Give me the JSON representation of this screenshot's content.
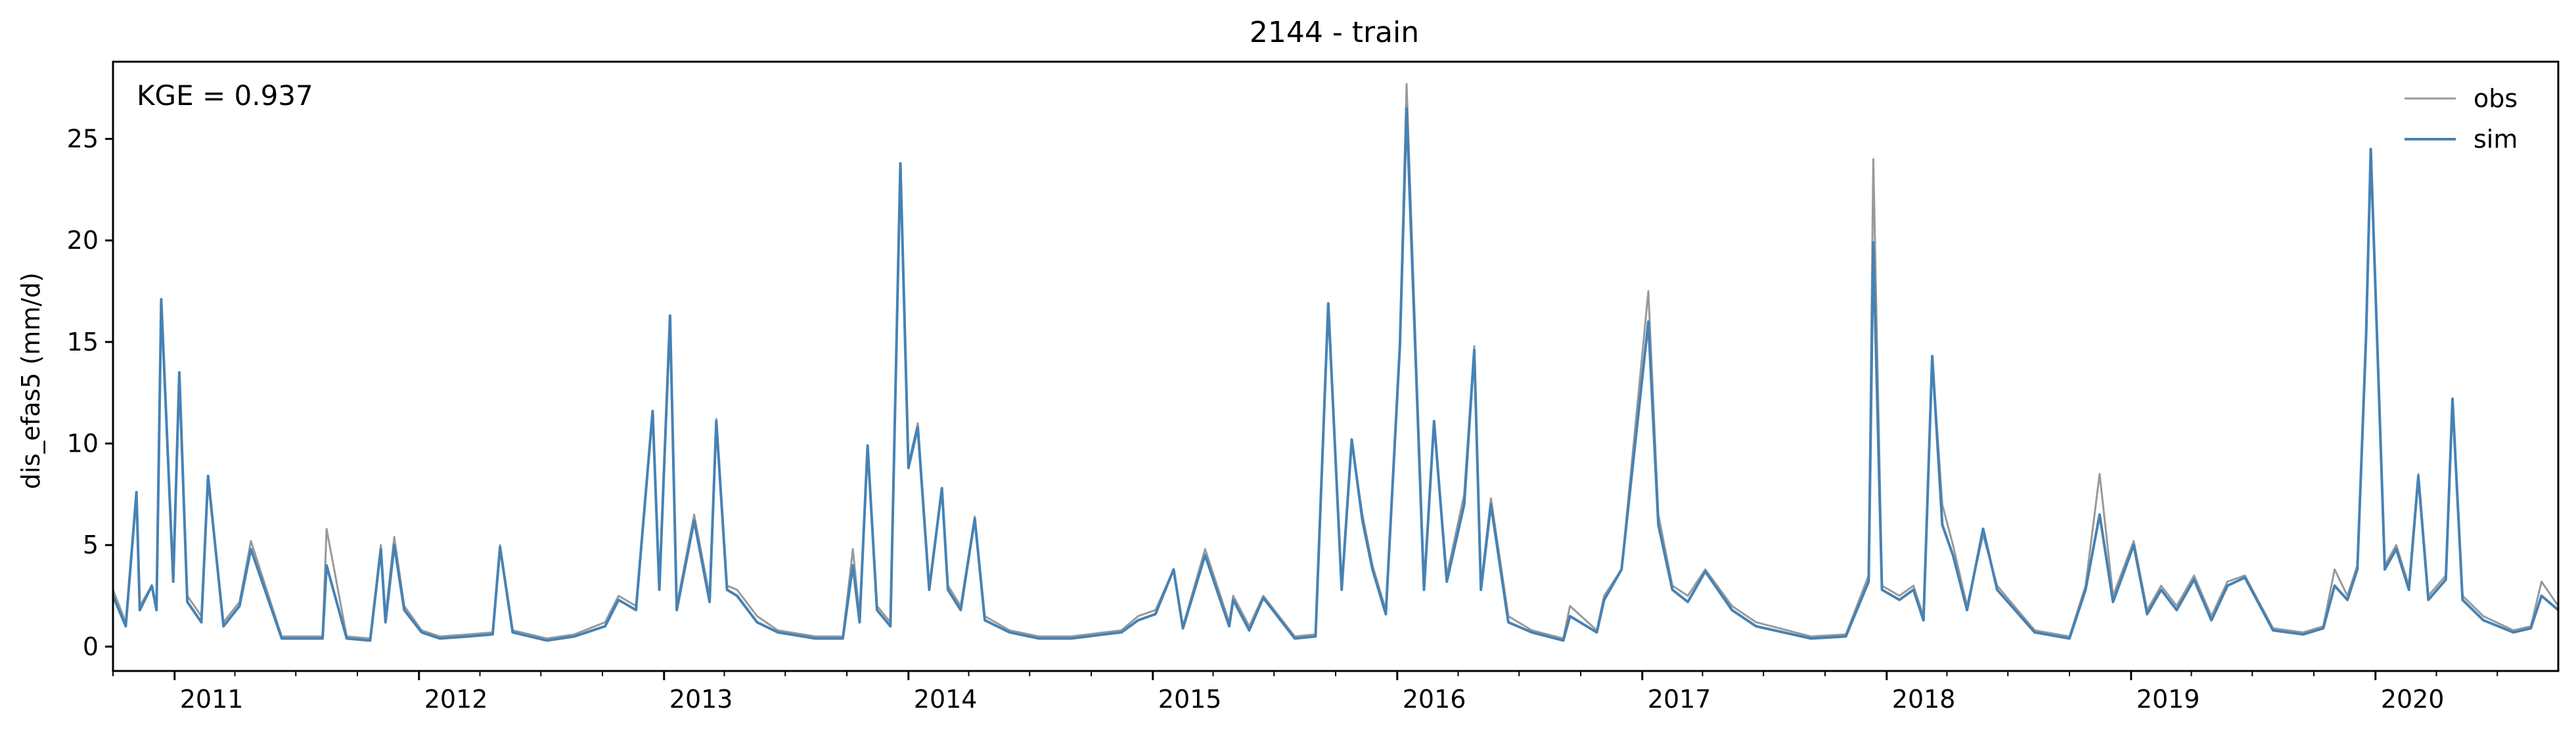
{
  "chart_data": {
    "type": "line",
    "title": "2144 - train",
    "ylabel": "dis_efas5 (mm/d)",
    "xlabel": "",
    "xlim": [
      "2010-10-01",
      "2020-09-30"
    ],
    "ylim": [
      -1.2,
      28.8
    ],
    "yticks": [
      0,
      5,
      10,
      15,
      20,
      25
    ],
    "xticks": [
      "2011",
      "2012",
      "2013",
      "2014",
      "2015",
      "2016",
      "2017",
      "2018",
      "2019",
      "2020"
    ],
    "grid": false,
    "legend_position": "top-right",
    "annotation": "KGE = 0.937",
    "series": [
      {
        "name": "obs",
        "color": "#999999",
        "x": [
          "2010-10-01",
          "2010-10-20",
          "2010-11-05",
          "2010-11-10",
          "2010-11-28",
          "2010-12-05",
          "2010-12-12",
          "2010-12-30",
          "2011-01-08",
          "2011-01-20",
          "2011-02-10",
          "2011-02-20",
          "2011-03-15",
          "2011-04-08",
          "2011-04-25",
          "2011-06-10",
          "2011-08-10",
          "2011-08-16",
          "2011-09-15",
          "2011-10-20",
          "2011-11-05",
          "2011-11-12",
          "2011-11-25",
          "2011-12-10",
          "2012-01-05",
          "2012-02-01",
          "2012-03-15",
          "2012-04-20",
          "2012-05-01",
          "2012-05-20",
          "2012-07-10",
          "2012-08-20",
          "2012-10-05",
          "2012-10-25",
          "2012-11-20",
          "2012-12-15",
          "2012-12-25",
          "2013-01-10",
          "2013-01-20",
          "2013-02-15",
          "2013-03-10",
          "2013-03-20",
          "2013-04-05",
          "2013-04-20",
          "2013-05-20",
          "2013-06-20",
          "2013-08-15",
          "2013-09-25",
          "2013-10-10",
          "2013-10-20",
          "2013-11-01",
          "2013-11-15",
          "2013-12-05",
          "2013-12-20",
          "2014-01-01",
          "2014-01-15",
          "2014-02-01",
          "2014-02-20",
          "2014-03-01",
          "2014-03-20",
          "2014-04-10",
          "2014-04-25",
          "2014-06-01",
          "2014-07-15",
          "2014-09-01",
          "2014-10-20",
          "2014-11-15",
          "2014-12-10",
          "2015-01-05",
          "2015-02-01",
          "2015-02-15",
          "2015-03-20",
          "2015-04-25",
          "2015-05-01",
          "2015-05-25",
          "2015-06-15",
          "2015-08-01",
          "2015-09-01",
          "2015-09-20",
          "2015-10-10",
          "2015-10-25",
          "2015-11-10",
          "2015-11-25",
          "2015-12-15",
          "2016-01-05",
          "2016-01-15",
          "2016-02-10",
          "2016-02-25",
          "2016-03-15",
          "2016-04-10",
          "2016-04-25",
          "2016-05-05",
          "2016-05-20",
          "2016-06-15",
          "2016-07-20",
          "2016-09-05",
          "2016-09-15",
          "2016-10-25",
          "2016-11-05",
          "2016-12-01",
          "2017-01-10",
          "2017-01-25",
          "2017-02-15",
          "2017-03-10",
          "2017-04-05",
          "2017-05-15",
          "2017-06-20",
          "2017-09-10",
          "2017-11-01",
          "2017-12-05",
          "2017-12-12",
          "2017-12-25",
          "2018-01-20",
          "2018-02-10",
          "2018-02-25",
          "2018-03-10",
          "2018-03-25",
          "2018-04-10",
          "2018-05-01",
          "2018-05-25",
          "2018-06-15",
          "2018-08-10",
          "2018-10-01",
          "2018-10-25",
          "2018-11-15",
          "2018-12-05",
          "2019-01-05",
          "2019-01-25",
          "2019-02-15",
          "2019-03-10",
          "2019-04-05",
          "2019-05-01",
          "2019-05-25",
          "2019-06-20",
          "2019-08-01",
          "2019-09-15",
          "2019-10-15",
          "2019-11-01",
          "2019-11-20",
          "2019-12-05",
          "2019-12-18",
          "2019-12-25",
          "2020-01-15",
          "2020-02-01",
          "2020-02-20",
          "2020-03-05",
          "2020-03-20",
          "2020-04-15",
          "2020-04-25",
          "2020-05-10",
          "2020-06-10",
          "2020-07-25",
          "2020-08-20",
          "2020-09-05",
          "2020-09-30"
        ],
        "values": [
          2.8,
          1.2,
          7.5,
          2.0,
          3.0,
          2.0,
          16.8,
          3.5,
          13.4,
          2.5,
          1.5,
          8.2,
          1.2,
          2.2,
          5.2,
          0.5,
          0.5,
          5.8,
          0.5,
          0.4,
          5.0,
          1.5,
          5.4,
          2.0,
          0.8,
          0.5,
          0.6,
          0.7,
          5.0,
          0.8,
          0.4,
          0.6,
          1.2,
          2.5,
          2.0,
          11.5,
          3.0,
          16.2,
          2.0,
          6.5,
          2.5,
          11.2,
          3.0,
          2.8,
          1.5,
          0.8,
          0.5,
          0.5,
          4.8,
          1.5,
          9.8,
          2.0,
          1.2,
          23.7,
          9.0,
          11.0,
          3.0,
          7.8,
          3.0,
          2.0,
          6.4,
          1.5,
          0.8,
          0.5,
          0.5,
          0.7,
          0.8,
          1.5,
          1.8,
          3.8,
          1.0,
          4.8,
          1.2,
          2.5,
          1.0,
          2.5,
          0.5,
          0.6,
          16.8,
          3.0,
          10.0,
          6.5,
          4.0,
          1.8,
          15.0,
          27.7,
          3.0,
          11.0,
          3.5,
          7.5,
          14.8,
          3.0,
          7.3,
          1.5,
          0.8,
          0.4,
          2.0,
          0.8,
          2.5,
          3.8,
          17.5,
          6.5,
          3.0,
          2.5,
          3.8,
          2.0,
          1.2,
          0.5,
          0.6,
          3.5,
          24.0,
          3.0,
          2.5,
          3.0,
          1.5,
          14.2,
          7.0,
          5.0,
          2.0,
          5.5,
          3.0,
          0.8,
          0.5,
          3.0,
          8.5,
          2.5,
          5.2,
          1.8,
          3.0,
          2.0,
          3.5,
          1.5,
          3.2,
          3.5,
          0.9,
          0.7,
          1.0,
          3.8,
          2.5,
          4.0,
          15.2,
          24.2,
          4.0,
          5.0,
          3.0,
          8.5,
          2.5,
          3.5,
          12.0,
          2.5,
          1.5,
          0.8,
          1.0,
          3.2,
          2.0
        ]
      },
      {
        "name": "sim",
        "color": "#4682b4",
        "x": [
          "2010-10-01",
          "2010-10-20",
          "2010-11-05",
          "2010-11-10",
          "2010-11-28",
          "2010-12-05",
          "2010-12-12",
          "2010-12-30",
          "2011-01-08",
          "2011-01-20",
          "2011-02-10",
          "2011-02-20",
          "2011-03-15",
          "2011-04-08",
          "2011-04-25",
          "2011-06-10",
          "2011-08-10",
          "2011-08-16",
          "2011-09-15",
          "2011-10-20",
          "2011-11-05",
          "2011-11-12",
          "2011-11-25",
          "2011-12-10",
          "2012-01-05",
          "2012-02-01",
          "2012-03-15",
          "2012-04-20",
          "2012-05-01",
          "2012-05-20",
          "2012-07-10",
          "2012-08-20",
          "2012-10-05",
          "2012-10-25",
          "2012-11-20",
          "2012-12-15",
          "2012-12-25",
          "2013-01-10",
          "2013-01-20",
          "2013-02-15",
          "2013-03-10",
          "2013-03-20",
          "2013-04-05",
          "2013-04-20",
          "2013-05-20",
          "2013-06-20",
          "2013-08-15",
          "2013-09-25",
          "2013-10-10",
          "2013-10-20",
          "2013-11-01",
          "2013-11-15",
          "2013-12-05",
          "2013-12-20",
          "2014-01-01",
          "2014-01-15",
          "2014-02-01",
          "2014-02-20",
          "2014-03-01",
          "2014-03-20",
          "2014-04-10",
          "2014-04-25",
          "2014-06-01",
          "2014-07-15",
          "2014-09-01",
          "2014-10-20",
          "2014-11-15",
          "2014-12-10",
          "2015-01-05",
          "2015-02-01",
          "2015-02-15",
          "2015-03-20",
          "2015-04-25",
          "2015-05-01",
          "2015-05-25",
          "2015-06-15",
          "2015-08-01",
          "2015-09-01",
          "2015-09-20",
          "2015-10-10",
          "2015-10-25",
          "2015-11-10",
          "2015-11-25",
          "2015-12-15",
          "2016-01-05",
          "2016-01-15",
          "2016-02-10",
          "2016-02-25",
          "2016-03-15",
          "2016-04-10",
          "2016-04-25",
          "2016-05-05",
          "2016-05-20",
          "2016-06-15",
          "2016-07-20",
          "2016-09-05",
          "2016-09-15",
          "2016-10-25",
          "2016-11-05",
          "2016-12-01",
          "2017-01-10",
          "2017-01-25",
          "2017-02-15",
          "2017-03-10",
          "2017-04-05",
          "2017-05-15",
          "2017-06-20",
          "2017-09-10",
          "2017-11-01",
          "2017-12-05",
          "2017-12-12",
          "2017-12-25",
          "2018-01-20",
          "2018-02-10",
          "2018-02-25",
          "2018-03-10",
          "2018-03-25",
          "2018-04-10",
          "2018-05-01",
          "2018-05-25",
          "2018-06-15",
          "2018-08-10",
          "2018-10-01",
          "2018-10-25",
          "2018-11-15",
          "2018-12-05",
          "2019-01-05",
          "2019-01-25",
          "2019-02-15",
          "2019-03-10",
          "2019-04-05",
          "2019-05-01",
          "2019-05-25",
          "2019-06-20",
          "2019-08-01",
          "2019-09-15",
          "2019-10-15",
          "2019-11-01",
          "2019-11-20",
          "2019-12-05",
          "2019-12-18",
          "2019-12-25",
          "2020-01-15",
          "2020-02-01",
          "2020-02-20",
          "2020-03-05",
          "2020-03-20",
          "2020-04-15",
          "2020-04-25",
          "2020-05-10",
          "2020-06-10",
          "2020-07-25",
          "2020-08-20",
          "2020-09-05",
          "2020-09-30"
        ],
        "values": [
          2.5,
          1.0,
          7.6,
          1.8,
          3.0,
          1.8,
          17.1,
          3.2,
          13.5,
          2.2,
          1.2,
          8.4,
          1.0,
          2.0,
          4.8,
          0.4,
          0.4,
          4.0,
          0.4,
          0.3,
          4.8,
          1.2,
          5.0,
          1.8,
          0.7,
          0.4,
          0.5,
          0.6,
          4.9,
          0.7,
          0.3,
          0.5,
          1.0,
          2.3,
          1.8,
          11.6,
          2.8,
          16.3,
          1.8,
          6.2,
          2.2,
          11.1,
          2.8,
          2.5,
          1.2,
          0.7,
          0.4,
          0.4,
          4.0,
          1.2,
          9.9,
          1.8,
          1.0,
          23.8,
          8.8,
          10.8,
          2.8,
          7.8,
          2.8,
          1.8,
          6.3,
          1.3,
          0.7,
          0.4,
          0.4,
          0.6,
          0.7,
          1.3,
          1.6,
          3.8,
          0.9,
          4.5,
          1.0,
          2.3,
          0.8,
          2.4,
          0.4,
          0.5,
          16.9,
          2.8,
          10.2,
          6.2,
          3.8,
          1.6,
          14.8,
          26.5,
          2.8,
          11.1,
          3.2,
          7.0,
          14.6,
          2.8,
          7.0,
          1.2,
          0.7,
          0.3,
          1.5,
          0.7,
          2.3,
          3.8,
          16.0,
          6.0,
          2.8,
          2.2,
          3.7,
          1.8,
          1.0,
          0.4,
          0.5,
          3.2,
          19.9,
          2.8,
          2.3,
          2.8,
          1.3,
          14.3,
          6.0,
          4.5,
          1.8,
          5.8,
          2.8,
          0.7,
          0.4,
          2.8,
          6.5,
          2.2,
          5.0,
          1.6,
          2.8,
          1.8,
          3.3,
          1.3,
          3.0,
          3.4,
          0.8,
          0.6,
          0.9,
          3.0,
          2.3,
          3.8,
          15.3,
          24.5,
          3.8,
          4.8,
          2.8,
          8.4,
          2.3,
          3.3,
          12.2,
          2.3,
          1.3,
          0.7,
          0.9,
          2.5,
          1.8
        ]
      }
    ]
  }
}
